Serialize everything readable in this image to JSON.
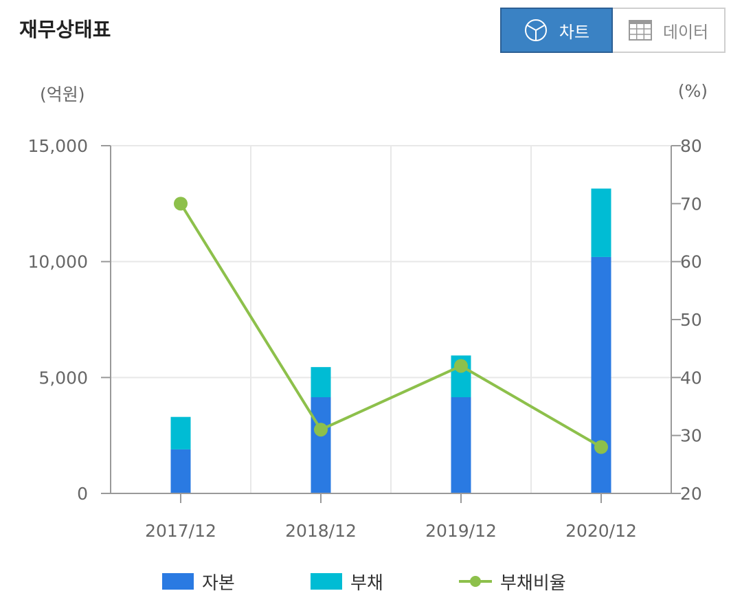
{
  "header": {
    "title": "재무상태표",
    "chart_tab_label": "차트",
    "data_tab_label": "데이터",
    "active_tab": "chart"
  },
  "colors": {
    "capital": "#2a7ae2",
    "liabilities": "#00bcd4",
    "ratio": "#8dc04b",
    "active_tab_bg": "#3a82c4",
    "inactive_tab_text": "#888888",
    "grid": "#e8e8e8",
    "axis": "#999999",
    "tick_text": "#666666"
  },
  "chart_data": {
    "type": "bar",
    "stacked": true,
    "categories": [
      "2017/12",
      "2018/12",
      "2019/12",
      "2020/12"
    ],
    "series": [
      {
        "name": "자본",
        "axis": "left",
        "values": [
          1900,
          4150,
          4150,
          10200
        ]
      },
      {
        "name": "부채",
        "axis": "left",
        "values": [
          1400,
          1300,
          1800,
          2950
        ]
      },
      {
        "name": "부채비율",
        "axis": "right",
        "type": "line",
        "values": [
          70,
          31,
          42,
          28
        ]
      }
    ],
    "y_left": {
      "unit": "(억원)",
      "min": 0,
      "max": 15000,
      "ticks": [
        0,
        5000,
        10000,
        15000
      ],
      "tick_labels": [
        "0",
        "5,000",
        "10,000",
        "15,000"
      ]
    },
    "y_right": {
      "unit": "(%)",
      "min": 20,
      "max": 80,
      "ticks": [
        20,
        30,
        40,
        50,
        60,
        70,
        80
      ],
      "tick_labels": [
        "20",
        "30",
        "40",
        "50",
        "60",
        "70",
        "80"
      ]
    },
    "grid": true,
    "legend_position": "bottom"
  }
}
